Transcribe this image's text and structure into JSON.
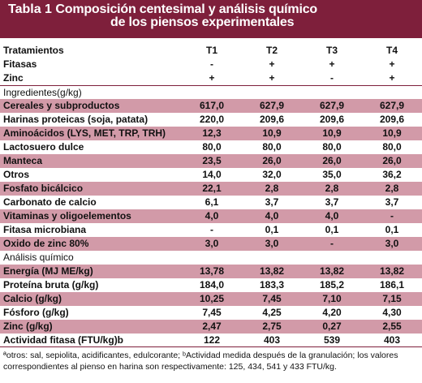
{
  "title": {
    "number": "Tabla 1",
    "line1": "Composición centesimal y análisis químico",
    "line2": "de los piensos experimentales"
  },
  "header": {
    "rows": [
      {
        "label": "Tratamientos",
        "values": [
          "T1",
          "T2",
          "T3",
          "T4"
        ]
      },
      {
        "label": "Fitasas",
        "values": [
          "-",
          "+",
          "+",
          "+"
        ]
      },
      {
        "label": "Zinc",
        "values": [
          "+",
          "+",
          "-",
          "+"
        ]
      }
    ]
  },
  "ingredients": {
    "section_label": "Ingredientes(g/kg)",
    "rows": [
      {
        "label": "Cereales y subproductos",
        "values": [
          "617,0",
          "627,9",
          "627,9",
          "627,9"
        ]
      },
      {
        "label": "Harinas proteicas (soja, patata)",
        "values": [
          "220,0",
          "209,6",
          "209,6",
          "209,6"
        ]
      },
      {
        "label": "Aminoácidos (LYS, MET, TRP, TRH)",
        "values": [
          "12,3",
          "10,9",
          "10,9",
          "10,9"
        ]
      },
      {
        "label": "Lactosuero dulce",
        "values": [
          "80,0",
          "80,0",
          "80,0",
          "80,0"
        ]
      },
      {
        "label": "Manteca",
        "values": [
          "23,5",
          "26,0",
          "26,0",
          "26,0"
        ]
      },
      {
        "label": "Otros",
        "values": [
          "14,0",
          "32,0",
          "35,0",
          "36,2"
        ]
      },
      {
        "label": "Fosfato bicálcico",
        "values": [
          "22,1",
          "2,8",
          "2,8",
          "2,8"
        ]
      },
      {
        "label": "Carbonato de calcio",
        "values": [
          "6,1",
          "3,7",
          "3,7",
          "3,7"
        ]
      },
      {
        "label": "Vitaminas y oligoelementos",
        "values": [
          "4,0",
          "4,0",
          "4,0",
          "-"
        ]
      },
      {
        "label": "Fitasa microbiana",
        "values": [
          "-",
          "0,1",
          "0,1",
          "0,1"
        ]
      },
      {
        "label": "Oxido de zinc 80%",
        "values": [
          "3,0",
          "3,0",
          "-",
          "3,0"
        ]
      }
    ]
  },
  "analysis": {
    "section_label": "Análisis químico",
    "rows": [
      {
        "label": "Energía (MJ ME/kg)",
        "values": [
          "13,78",
          "13,82",
          "13,82",
          "13,82"
        ]
      },
      {
        "label": "Proteína bruta (g/kg)",
        "values": [
          "184,0",
          "183,3",
          "185,2",
          "186,1"
        ]
      },
      {
        "label": "Calcio (g/kg)",
        "values": [
          "10,25",
          "7,45",
          "7,10",
          "7,15"
        ]
      },
      {
        "label": "Fósforo (g/kg)",
        "values": [
          "7,45",
          "4,25",
          "4,20",
          "4,30"
        ]
      },
      {
        "label": "Zinc (g/kg)",
        "values": [
          "2,47",
          "2,75",
          "0,27",
          "2,55"
        ]
      },
      {
        "label": "Actividad fitasa (FTU/kg)b",
        "values": [
          "122",
          "403",
          "539",
          "403"
        ]
      }
    ]
  },
  "footnote": "ªotros: sal, sepiolita, acidificantes, edulcorante; ᵇActividad medida después de la granulación; los valores correspondientes al pienso en harina son respectivamente: 125, 434, 541 y 433 FTU/kg.",
  "colors": {
    "title_bg": "#7e1f3b",
    "row_shade": "#d29aa8"
  }
}
